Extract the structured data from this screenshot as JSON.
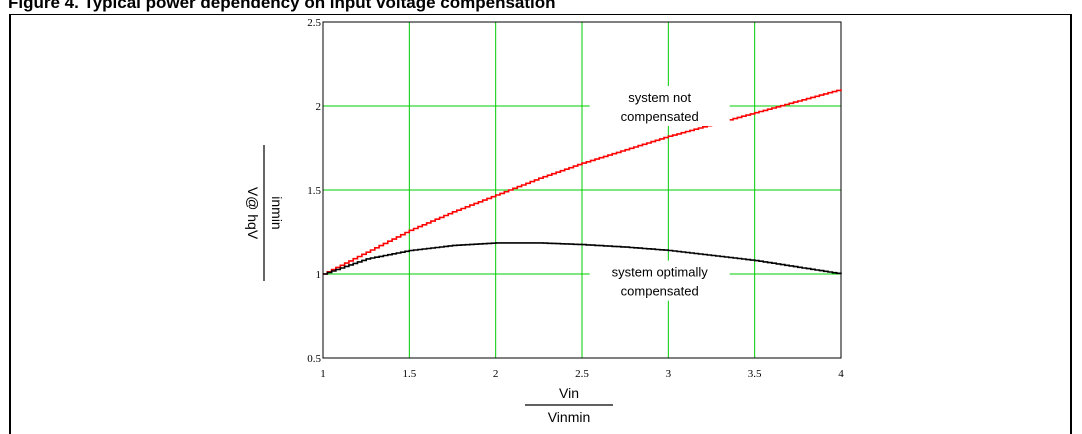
{
  "figure_title": "Figure 4. Typical power dependency on input voltage compensation",
  "chart_data": {
    "type": "line",
    "xlim": [
      1,
      4
    ],
    "ylim": [
      0.5,
      2.5
    ],
    "x_ticks": [
      "1",
      "1.5",
      "2",
      "2.5",
      "3",
      "3.5",
      "4"
    ],
    "y_ticks": [
      "0.5",
      "1",
      "1.5",
      "2",
      "2.5"
    ],
    "grid": true,
    "grid_color": "#00cc00",
    "xlabel": {
      "numerator": "Vin",
      "denominator": "Vinmin"
    },
    "ylabel": {
      "numerator": "inmin",
      "denominator": "V@ hqV"
    },
    "series": [
      {
        "name": "system not compensated",
        "color": "#ff0000",
        "x": [
          1.0,
          1.25,
          1.5,
          1.75,
          2.0,
          2.25,
          2.5,
          2.75,
          3.0,
          3.25,
          3.5,
          3.75,
          4.0
        ],
        "y": [
          1.0,
          1.13,
          1.26,
          1.37,
          1.47,
          1.57,
          1.66,
          1.74,
          1.82,
          1.89,
          1.96,
          2.03,
          2.1
        ]
      },
      {
        "name": "system optimally compensated",
        "color": "#000000",
        "x": [
          1.0,
          1.25,
          1.5,
          1.75,
          2.0,
          2.25,
          2.5,
          2.75,
          3.0,
          3.25,
          3.5,
          3.75,
          4.0
        ],
        "y": [
          1.0,
          1.09,
          1.14,
          1.17,
          1.185,
          1.185,
          1.175,
          1.16,
          1.14,
          1.11,
          1.08,
          1.04,
          1.0
        ]
      }
    ],
    "annotations": [
      {
        "lines": [
          "system not",
          "compensated"
        ],
        "x": 2.95,
        "y": 2.0
      },
      {
        "lines": [
          "system optimally",
          "compensated"
        ],
        "x": 2.95,
        "y": 0.96
      }
    ]
  }
}
